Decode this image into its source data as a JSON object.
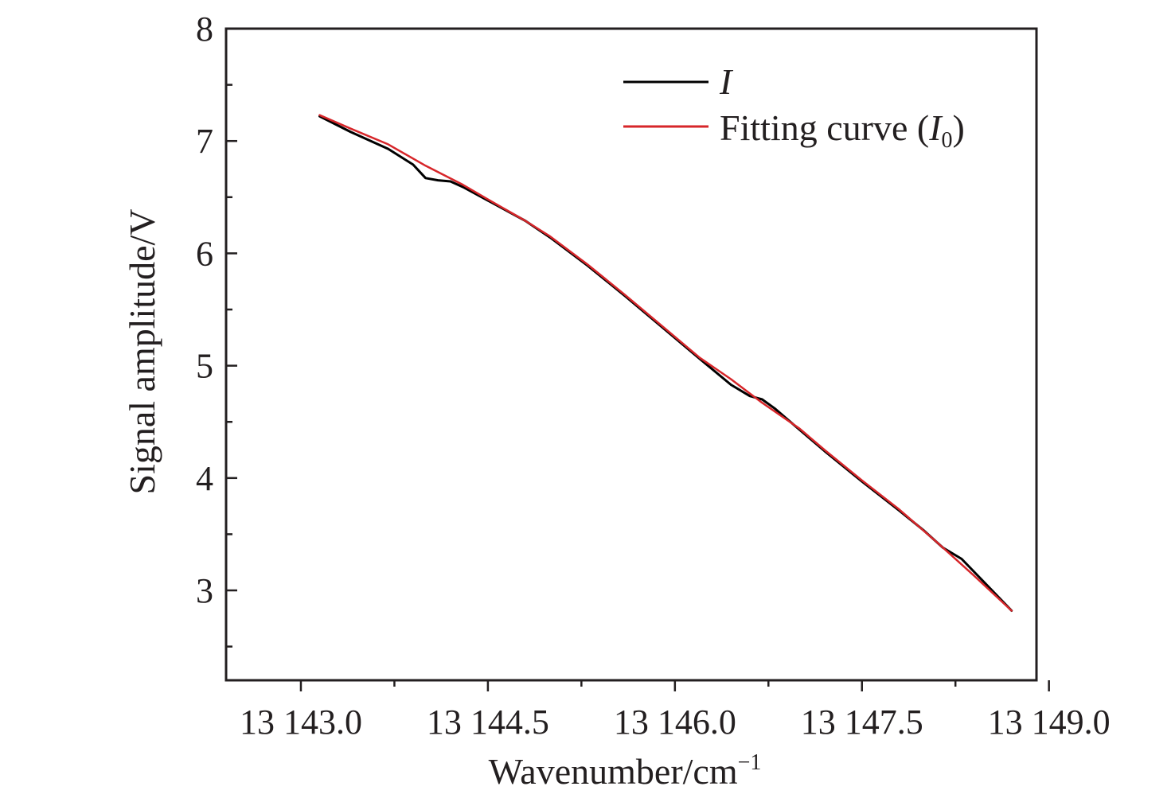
{
  "chart_data": {
    "type": "line",
    "xlabel": "Wavenumber/cm",
    "xlabel_sup": "−1",
    "ylabel": "Signal amplitude/V",
    "xlim": [
      13142.4,
      13148.9
    ],
    "ylim": [
      2.2,
      8.0
    ],
    "xticks": [
      13143.0,
      13144.5,
      13146.0,
      13147.5,
      13149.0
    ],
    "xtick_labels": [
      "13 143.0",
      "13 144.5",
      "13 146.0",
      "13 147.5",
      "13 149.0"
    ],
    "yticks": [
      3,
      4,
      5,
      6,
      7,
      8
    ],
    "ytick_labels": [
      "3",
      "4",
      "5",
      "6",
      "7",
      "8"
    ],
    "legend": {
      "position": "top-right",
      "entries": [
        {
          "label": "I",
          "italic": true
        },
        {
          "label_main": "Fitting curve (",
          "label_var": "I",
          "label_sub": "0",
          "label_end": ")"
        }
      ]
    },
    "series": [
      {
        "name": "I",
        "color": "#000000",
        "x": [
          13143.15,
          13143.4,
          13143.7,
          13143.9,
          13144.0,
          13144.1,
          13144.2,
          13144.3,
          13144.5,
          13144.8,
          13145.0,
          13145.3,
          13145.6,
          13145.9,
          13146.2,
          13146.45,
          13146.6,
          13146.7,
          13146.8,
          13147.0,
          13147.2,
          13147.5,
          13147.8,
          13148.0,
          13148.15,
          13148.3,
          13148.5,
          13148.7
        ],
        "y": [
          7.22,
          7.08,
          6.93,
          6.79,
          6.67,
          6.65,
          6.64,
          6.59,
          6.47,
          6.29,
          6.14,
          5.89,
          5.62,
          5.34,
          5.06,
          4.83,
          4.73,
          4.7,
          4.62,
          4.43,
          4.24,
          3.97,
          3.71,
          3.53,
          3.38,
          3.28,
          3.05,
          2.82
        ]
      },
      {
        "name": "Fitting curve (I0)",
        "color": "#d7262a",
        "x": [
          13143.15,
          13143.4,
          13143.7,
          13144.0,
          13144.3,
          13144.5,
          13144.8,
          13145.0,
          13145.3,
          13145.6,
          13145.9,
          13146.2,
          13146.45,
          13146.7,
          13147.0,
          13147.2,
          13147.5,
          13147.8,
          13148.1,
          13148.4,
          13148.7
        ],
        "y": [
          7.23,
          7.11,
          6.97,
          6.78,
          6.61,
          6.48,
          6.29,
          6.15,
          5.9,
          5.63,
          5.35,
          5.07,
          4.88,
          4.67,
          4.44,
          4.25,
          3.98,
          3.72,
          3.43,
          3.13,
          2.82
        ]
      }
    ]
  }
}
